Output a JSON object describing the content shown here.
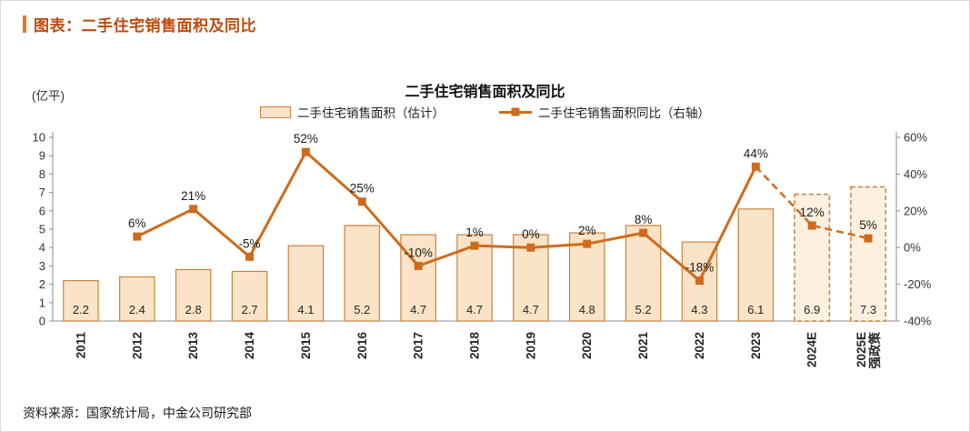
{
  "header": {
    "title": "图表：二手住宅销售面积及同比",
    "accent_color": "#E87722",
    "title_color": "#BE4A0E"
  },
  "footer": {
    "source": "资料来源：国家统计局，中金公司研究部"
  },
  "chart_data": {
    "type": "bar+line combo",
    "title": "二手住宅销售面积及同比",
    "unit_label": "(亿平)",
    "categories": [
      "2011",
      "2012",
      "2013",
      "2014",
      "2015",
      "2016",
      "2017",
      "2018",
      "2019",
      "2020",
      "2021",
      "2022",
      "2023",
      "2024E",
      "2025E\n强政策"
    ],
    "series": [
      {
        "name": "二手住宅销售面积（估计）",
        "type": "bar",
        "axis": "left",
        "values": [
          2.2,
          2.4,
          2.8,
          2.7,
          4.1,
          5.2,
          4.7,
          4.7,
          4.7,
          4.8,
          5.2,
          4.3,
          6.1,
          6.9,
          7.3
        ],
        "labels": [
          "2.2",
          "2.4",
          "2.8",
          "2.7",
          "4.1",
          "5.2",
          "4.7",
          "4.7",
          "4.7",
          "4.8",
          "5.2",
          "4.3",
          "6.1",
          "6.9",
          "7.3"
        ],
        "estimated_from_index": 13
      },
      {
        "name": "二手住宅销售面积同比（右轴）",
        "type": "line",
        "axis": "right",
        "values": [
          null,
          6,
          21,
          -5,
          52,
          25,
          -10,
          1,
          0,
          2,
          8,
          -18,
          44,
          12,
          5
        ],
        "labels": [
          null,
          "6%",
          "21%",
          "-5%",
          "52%",
          "25%",
          "-10%",
          "1%",
          "0%",
          "2%",
          "8%",
          "-18%",
          "44%",
          "12%",
          "5%"
        ],
        "dashed_from_index": 12
      }
    ],
    "left_axis": {
      "min": 0,
      "max": 10,
      "tick_values": [
        0,
        1,
        2,
        3,
        4,
        5,
        6,
        7,
        8,
        9,
        10
      ],
      "tick_labels": [
        "0",
        "1",
        "2",
        "3",
        "4",
        "5",
        "6",
        "7",
        "8",
        "9",
        "10"
      ]
    },
    "right_axis": {
      "min": -40,
      "max": 60,
      "tick_values": [
        -40,
        -20,
        0,
        20,
        40,
        60
      ],
      "tick_labels": [
        "-40%",
        "-20%",
        "0%",
        "20%",
        "40%",
        "60%"
      ]
    },
    "legend_position": "top",
    "grid": false,
    "colors": {
      "bar_fill": "#FAE3C6",
      "bar_fill_estimate": "#FDF0DF",
      "bar_border": "#C8823E",
      "line": "#CE6B1D"
    }
  }
}
